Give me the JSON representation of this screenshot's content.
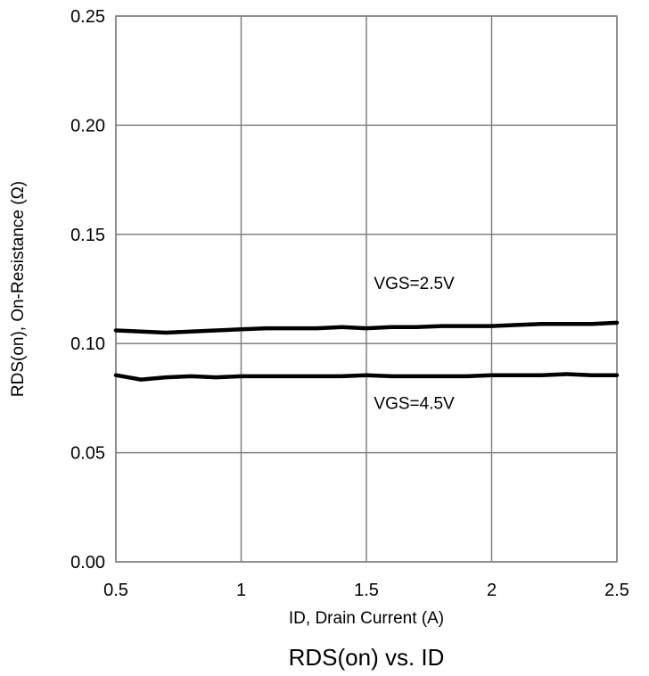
{
  "chart_data": {
    "type": "line",
    "title": "RDS(on) vs. ID",
    "xlabel": "ID, Drain Current (A)",
    "ylabel": "RDS(on), On-Resistance (Ω)",
    "xlim": [
      0.5,
      2.5
    ],
    "ylim": [
      0,
      0.25
    ],
    "x_ticks": [
      "0.5",
      "1",
      "1.5",
      "2",
      "2.5"
    ],
    "y_ticks": [
      "0.00",
      "0.05",
      "0.10",
      "0.15",
      "0.20",
      "0.25"
    ],
    "grid": true,
    "series": [
      {
        "name": "VGS=2.5V",
        "color": "#000000",
        "x": [
          0.5,
          0.6,
          0.7,
          0.8,
          0.9,
          1.0,
          1.1,
          1.2,
          1.3,
          1.4,
          1.5,
          1.6,
          1.7,
          1.8,
          1.9,
          2.0,
          2.1,
          2.2,
          2.3,
          2.4,
          2.5
        ],
        "y": [
          0.106,
          0.1055,
          0.105,
          0.1055,
          0.106,
          0.1065,
          0.107,
          0.107,
          0.107,
          0.1075,
          0.107,
          0.1075,
          0.1075,
          0.108,
          0.108,
          0.108,
          0.1085,
          0.109,
          0.109,
          0.109,
          0.1095
        ]
      },
      {
        "name": "VGS=4.5V",
        "color": "#000000",
        "x": [
          0.5,
          0.6,
          0.7,
          0.8,
          0.9,
          1.0,
          1.1,
          1.2,
          1.3,
          1.4,
          1.5,
          1.6,
          1.7,
          1.8,
          1.9,
          2.0,
          2.1,
          2.2,
          2.3,
          2.4,
          2.5
        ],
        "y": [
          0.0855,
          0.0835,
          0.0845,
          0.085,
          0.0845,
          0.085,
          0.085,
          0.085,
          0.085,
          0.085,
          0.0855,
          0.085,
          0.085,
          0.085,
          0.085,
          0.0855,
          0.0855,
          0.0855,
          0.086,
          0.0855,
          0.0855
        ]
      }
    ],
    "annotations": [
      {
        "text": "VGS=2.5V",
        "x": 1.53,
        "y": 0.125
      },
      {
        "text": "VGS=4.5V",
        "x": 1.53,
        "y": 0.07
      }
    ]
  }
}
